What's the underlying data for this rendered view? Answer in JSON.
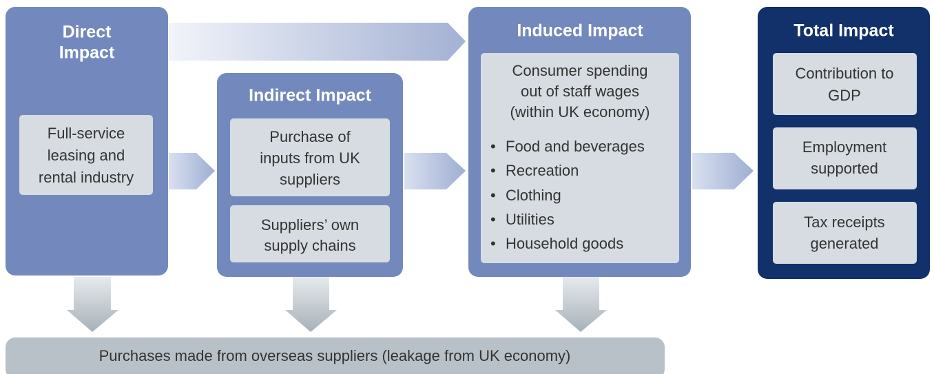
{
  "direct": {
    "title": [
      "Direct",
      "Impact"
    ],
    "items": [
      [
        "Full-service",
        "leasing and",
        "rental industry"
      ]
    ]
  },
  "indirect": {
    "title": [
      "Indirect Impact"
    ],
    "items": [
      [
        "Purchase of",
        "inputs from UK",
        "suppliers"
      ],
      [
        "Suppliers’ own",
        "supply chains"
      ]
    ]
  },
  "induced": {
    "title": [
      "Induced Impact"
    ],
    "items": [
      [
        "Consumer spending",
        "out of staff wages",
        "(within UK economy)"
      ]
    ],
    "bullets": [
      "Food and beverages",
      "Recreation",
      "Clothing",
      "Utilities",
      "Household goods"
    ]
  },
  "total": {
    "title": [
      "Total Impact"
    ],
    "items": [
      [
        "Contribution to",
        "GDP"
      ],
      [
        "Employment",
        "supported"
      ],
      [
        "Tax receipts",
        "generated"
      ]
    ]
  },
  "leakage": "Purchases made from overseas suppliers (leakage from UK economy)"
}
